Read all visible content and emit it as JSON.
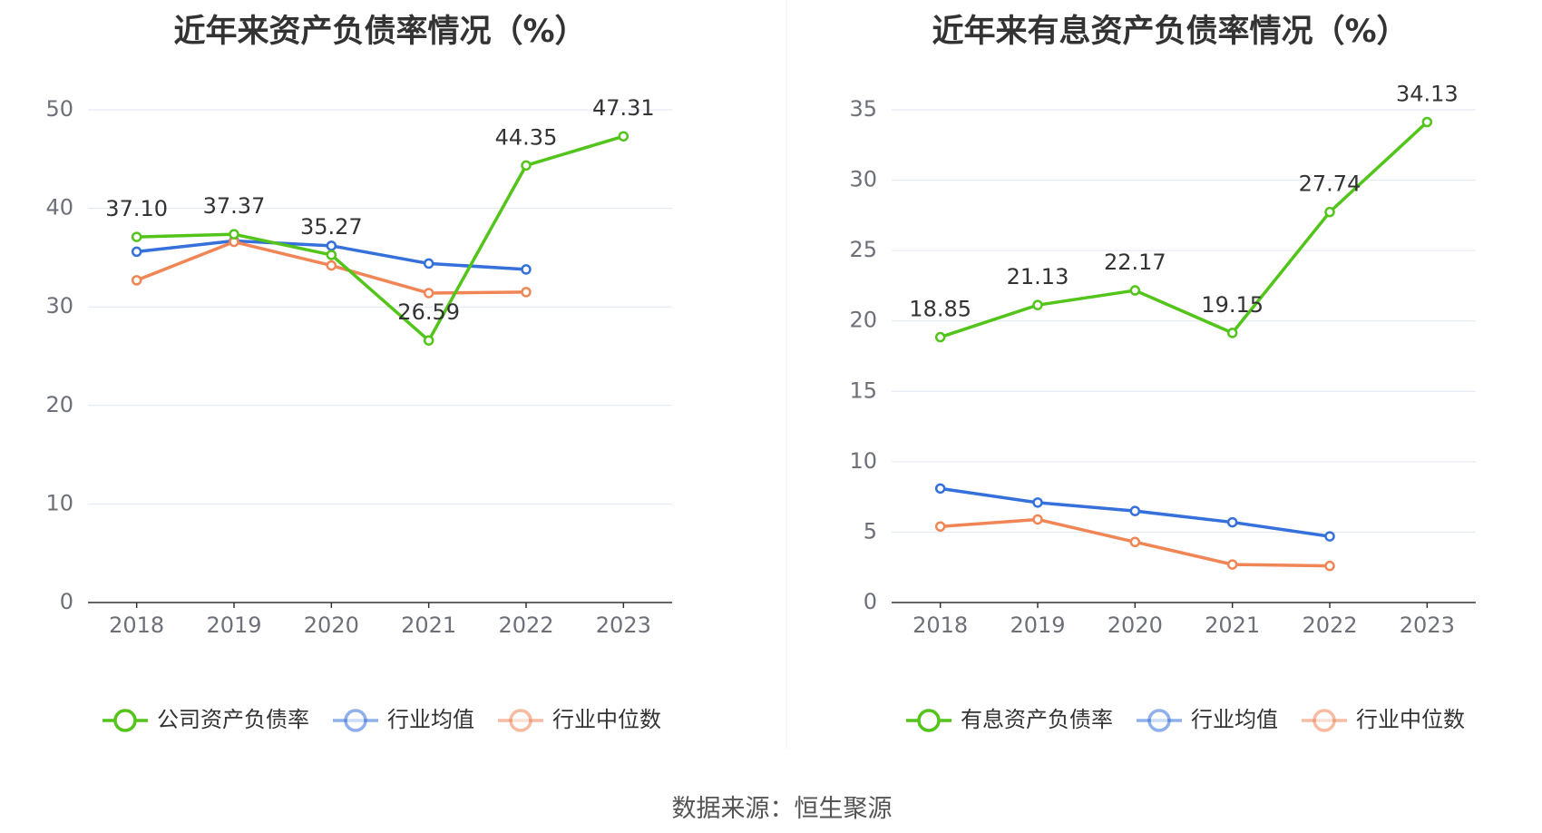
{
  "colors": {
    "company": "#52c41a",
    "industry_avg": "#3570db",
    "industry_median": "#f08556",
    "grid": "#e0e6f1",
    "axis": "#333333",
    "text": "#333333",
    "tick_text": "#6e7079"
  },
  "source": "数据来源：恒生聚源",
  "chart_data": [
    {
      "type": "line",
      "title": "近年来资产负债率情况（%）",
      "x": [
        "2018",
        "2019",
        "2020",
        "2021",
        "2022",
        "2023"
      ],
      "ylim": [
        0,
        50
      ],
      "yticks": [
        0,
        10,
        20,
        30,
        40,
        50
      ],
      "grid": true,
      "legend_position": "bottom",
      "series": [
        {
          "name": "公司资产负债率",
          "color": "#52c41a",
          "values": [
            37.1,
            37.37,
            35.27,
            26.59,
            44.35,
            47.31
          ],
          "labels": [
            "37.10",
            "37.37",
            "35.27",
            "26.59",
            "44.35",
            "47.31"
          ]
        },
        {
          "name": "行业均值",
          "color": "#3570db",
          "values": [
            35.6,
            36.7,
            36.2,
            34.4,
            33.8,
            null
          ]
        },
        {
          "name": "行业中位数",
          "color": "#f08556",
          "values": [
            32.7,
            36.6,
            34.2,
            31.4,
            31.5,
            null
          ]
        }
      ]
    },
    {
      "type": "line",
      "title": "近年来有息资产负债率情况（%）",
      "x": [
        "2018",
        "2019",
        "2020",
        "2021",
        "2022",
        "2023"
      ],
      "ylim": [
        0,
        35
      ],
      "yticks": [
        0,
        5,
        10,
        15,
        20,
        25,
        30,
        35
      ],
      "grid": true,
      "legend_position": "bottom",
      "series": [
        {
          "name": "有息资产负债率",
          "color": "#52c41a",
          "values": [
            18.85,
            21.13,
            22.17,
            19.15,
            27.74,
            34.13
          ],
          "labels": [
            "18.85",
            "21.13",
            "22.17",
            "19.15",
            "27.74",
            "34.13"
          ]
        },
        {
          "name": "行业均值",
          "color": "#3570db",
          "values": [
            8.1,
            7.1,
            6.5,
            5.7,
            4.7,
            null
          ]
        },
        {
          "name": "行业中位数",
          "color": "#f08556",
          "values": [
            5.4,
            5.9,
            4.3,
            2.7,
            2.6,
            null
          ]
        }
      ]
    }
  ]
}
